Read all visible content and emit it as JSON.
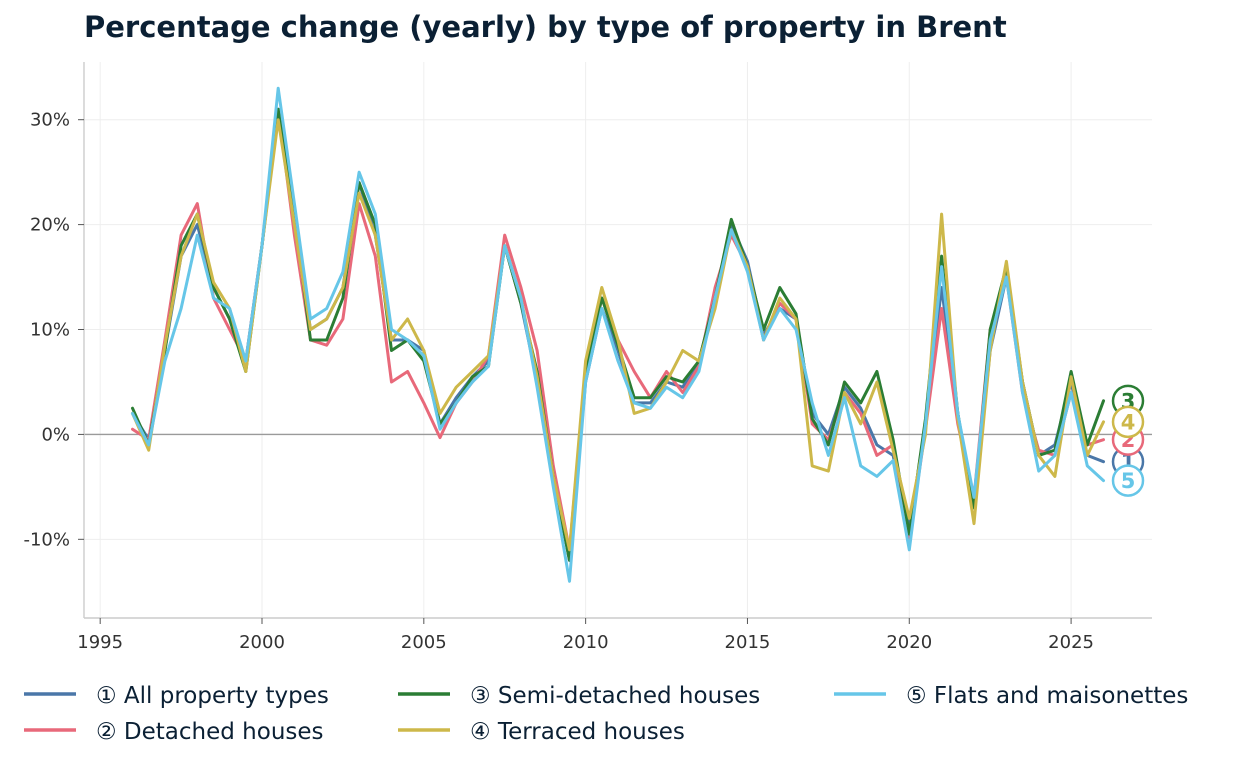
{
  "chart_data": {
    "type": "line",
    "title": "Percentage change (yearly) by type of property in Brent",
    "xlabel": "",
    "ylabel": "",
    "xlim": [
      1994.5,
      2027.5
    ],
    "ylim": [
      -17.5,
      35.5
    ],
    "x_ticks": [
      1995,
      2000,
      2005,
      2010,
      2015,
      2020,
      2025
    ],
    "x_tick_labels": [
      "1995",
      "2000",
      "2005",
      "2010",
      "2015",
      "2020",
      "2025"
    ],
    "y_ticks": [
      -10,
      0,
      10,
      20,
      30
    ],
    "y_tick_labels": [
      "-10%",
      "0%",
      "10%",
      "20%",
      "30%"
    ],
    "grid": true,
    "zero_line": true,
    "legend_position": "bottom",
    "series": [
      {
        "name": "① All property types",
        "end_marker": "1",
        "color": "#4a77a8",
        "x": [
          1996,
          1996.5,
          1997,
          1997.5,
          1998,
          1998.5,
          1999,
          1999.5,
          2000,
          2000.5,
          2001,
          2001.5,
          2002,
          2002.5,
          2003,
          2003.5,
          2004,
          2004.5,
          2005,
          2005.5,
          2006,
          2006.5,
          2007,
          2007.5,
          2008,
          2008.5,
          2009,
          2009.5,
          2010,
          2010.5,
          2011,
          2011.5,
          2012,
          2012.5,
          2013,
          2013.5,
          2014,
          2014.5,
          2015,
          2015.5,
          2016,
          2016.5,
          2017,
          2017.5,
          2018,
          2018.5,
          2019,
          2019.5,
          2020,
          2020.5,
          2021,
          2021.5,
          2022,
          2022.5,
          2023,
          2023.5,
          2024,
          2024.5,
          2025,
          2025.5,
          2026
        ],
        "y": [
          2.0,
          -0.5,
          8.0,
          17.0,
          20.0,
          14.0,
          11.0,
          7.0,
          18.0,
          31.0,
          20.0,
          10.0,
          11.0,
          14.0,
          24.0,
          19.0,
          9.0,
          9.0,
          8.0,
          1.0,
          3.5,
          5.5,
          7.0,
          18.0,
          12.5,
          5.0,
          -4.0,
          -12.0,
          5.0,
          12.0,
          8.0,
          3.0,
          3.0,
          5.0,
          4.5,
          7.0,
          13.0,
          20.0,
          16.5,
          9.5,
          12.0,
          11.0,
          2.0,
          0.0,
          4.5,
          2.5,
          -1.0,
          -2.0,
          -9.0,
          1.0,
          14.0,
          2.0,
          -7.0,
          8.0,
          15.0,
          5.0,
          -2.0,
          -1.0,
          5.0,
          -2.0,
          -2.6
        ]
      },
      {
        "name": "② Detached houses",
        "end_marker": "2",
        "color": "#e8697a",
        "x": [
          1996,
          1996.5,
          1997,
          1997.5,
          1998,
          1998.5,
          1999,
          1999.5,
          2000,
          2000.5,
          2001,
          2001.5,
          2002,
          2002.5,
          2003,
          2003.5,
          2004,
          2004.5,
          2005,
          2005.5,
          2006,
          2006.5,
          2007,
          2007.5,
          2008,
          2008.5,
          2009,
          2009.5,
          2010,
          2010.5,
          2011,
          2011.5,
          2012,
          2012.5,
          2013,
          2013.5,
          2014,
          2014.5,
          2015,
          2015.5,
          2016,
          2016.5,
          2017,
          2017.5,
          2018,
          2018.5,
          2019,
          2019.5,
          2020,
          2020.5,
          2021,
          2021.5,
          2022,
          2022.5,
          2023,
          2023.5,
          2024,
          2024.5,
          2025,
          2025.5,
          2026
        ],
        "y": [
          0.5,
          -0.5,
          9.0,
          19.0,
          22.0,
          13.0,
          10.0,
          7.0,
          18.0,
          31.0,
          19.0,
          9.0,
          8.5,
          11.0,
          22.0,
          17.0,
          5.0,
          6.0,
          3.0,
          -0.3,
          3.0,
          5.0,
          7.5,
          19.0,
          14.0,
          8.0,
          -3.0,
          -11.0,
          6.0,
          13.0,
          9.0,
          6.0,
          3.5,
          6.0,
          4.0,
          6.5,
          14.0,
          19.0,
          16.0,
          9.0,
          12.5,
          11.0,
          1.0,
          -0.5,
          4.0,
          2.0,
          -2.0,
          -1.0,
          -10.0,
          0.5,
          12.0,
          1.0,
          -6.0,
          10.0,
          15.0,
          4.0,
          -1.5,
          -2.0,
          4.0,
          -1.0,
          -0.5
        ]
      },
      {
        "name": "③ Semi-detached houses",
        "end_marker": "3",
        "color": "#2b7d34",
        "x": [
          1996,
          1996.5,
          1997,
          1997.5,
          1998,
          1998.5,
          1999,
          1999.5,
          2000,
          2000.5,
          2001,
          2001.5,
          2002,
          2002.5,
          2003,
          2003.5,
          2004,
          2004.5,
          2005,
          2005.5,
          2006,
          2006.5,
          2007,
          2007.5,
          2008,
          2008.5,
          2009,
          2009.5,
          2010,
          2010.5,
          2011,
          2011.5,
          2012,
          2012.5,
          2013,
          2013.5,
          2014,
          2014.5,
          2015,
          2015.5,
          2016,
          2016.5,
          2017,
          2017.5,
          2018,
          2018.5,
          2019,
          2019.5,
          2020,
          2020.5,
          2021,
          2021.5,
          2022,
          2022.5,
          2023,
          2023.5,
          2024,
          2024.5,
          2025,
          2025.5,
          2026
        ],
        "y": [
          2.5,
          -1.0,
          8.0,
          18.0,
          21.0,
          14.0,
          11.0,
          6.0,
          18.0,
          31.0,
          21.0,
          9.0,
          9.0,
          13.0,
          24.0,
          20.0,
          8.0,
          9.0,
          7.0,
          1.0,
          3.0,
          5.5,
          6.5,
          18.0,
          12.5,
          6.0,
          -4.0,
          -12.0,
          6.0,
          13.0,
          8.5,
          3.5,
          3.5,
          5.5,
          5.0,
          7.0,
          13.0,
          20.5,
          16.0,
          10.0,
          14.0,
          11.5,
          1.5,
          -1.0,
          5.0,
          3.0,
          6.0,
          -0.5,
          -9.5,
          1.5,
          17.0,
          2.0,
          -7.0,
          10.0,
          16.0,
          5.0,
          -2.0,
          -1.5,
          6.0,
          -1.0,
          3.2
        ]
      },
      {
        "name": "④ Terraced houses",
        "end_marker": "4",
        "color": "#cdb84a",
        "x": [
          1996,
          1996.5,
          1997,
          1997.5,
          1998,
          1998.5,
          1999,
          1999.5,
          2000,
          2000.5,
          2001,
          2001.5,
          2002,
          2002.5,
          2003,
          2003.5,
          2004,
          2004.5,
          2005,
          2005.5,
          2006,
          2006.5,
          2007,
          2007.5,
          2008,
          2008.5,
          2009,
          2009.5,
          2010,
          2010.5,
          2011,
          2011.5,
          2012,
          2012.5,
          2013,
          2013.5,
          2014,
          2014.5,
          2015,
          2015.5,
          2016,
          2016.5,
          2017,
          2017.5,
          2018,
          2018.5,
          2019,
          2019.5,
          2020,
          2020.5,
          2021,
          2021.5,
          2022,
          2022.5,
          2023,
          2023.5,
          2024,
          2024.5,
          2025,
          2025.5,
          2026
        ],
        "y": [
          2.0,
          -1.5,
          8.5,
          17.0,
          21.0,
          14.5,
          12.0,
          6.0,
          18.0,
          30.0,
          20.0,
          10.0,
          11.0,
          14.0,
          23.0,
          19.0,
          9.0,
          11.0,
          8.0,
          2.0,
          4.5,
          6.0,
          7.5,
          18.0,
          13.0,
          5.5,
          -4.0,
          -11.0,
          7.0,
          14.0,
          9.0,
          2.0,
          2.5,
          5.0,
          8.0,
          7.0,
          12.0,
          19.5,
          16.0,
          9.0,
          13.0,
          11.0,
          -3.0,
          -3.5,
          4.0,
          1.0,
          5.0,
          -1.5,
          -8.0,
          0.0,
          21.0,
          1.5,
          -8.5,
          8.0,
          16.5,
          5.0,
          -2.0,
          -4.0,
          5.5,
          -2.0,
          1.2
        ]
      },
      {
        "name": "⑤ Flats and maisonettes",
        "end_marker": "5",
        "color": "#66c6e8",
        "x": [
          1996,
          1996.5,
          1997,
          1997.5,
          1998,
          1998.5,
          1999,
          1999.5,
          2000,
          2000.5,
          2001,
          2001.5,
          2002,
          2002.5,
          2003,
          2003.5,
          2004,
          2004.5,
          2005,
          2005.5,
          2006,
          2006.5,
          2007,
          2007.5,
          2008,
          2008.5,
          2009,
          2009.5,
          2010,
          2010.5,
          2011,
          2011.5,
          2012,
          2012.5,
          2013,
          2013.5,
          2014,
          2014.5,
          2015,
          2015.5,
          2016,
          2016.5,
          2017,
          2017.5,
          2018,
          2018.5,
          2019,
          2019.5,
          2020,
          2020.5,
          2021,
          2021.5,
          2022,
          2022.5,
          2023,
          2023.5,
          2024,
          2024.5,
          2025,
          2025.5,
          2026
        ],
        "y": [
          2.0,
          -1.0,
          7.0,
          12.0,
          19.0,
          13.0,
          12.0,
          7.0,
          18.0,
          33.0,
          22.0,
          11.0,
          12.0,
          15.5,
          25.0,
          21.0,
          10.0,
          9.0,
          7.5,
          0.5,
          3.0,
          5.0,
          6.5,
          18.0,
          13.0,
          4.5,
          -5.0,
          -14.0,
          5.0,
          12.0,
          7.0,
          3.0,
          2.5,
          4.5,
          3.5,
          6.0,
          13.0,
          19.5,
          15.5,
          9.0,
          12.0,
          10.0,
          3.0,
          -2.0,
          3.5,
          -3.0,
          -4.0,
          -2.5,
          -11.0,
          1.0,
          16.0,
          2.0,
          -6.0,
          9.0,
          15.0,
          4.0,
          -3.5,
          -2.0,
          4.0,
          -3.0,
          -4.4
        ]
      }
    ]
  }
}
